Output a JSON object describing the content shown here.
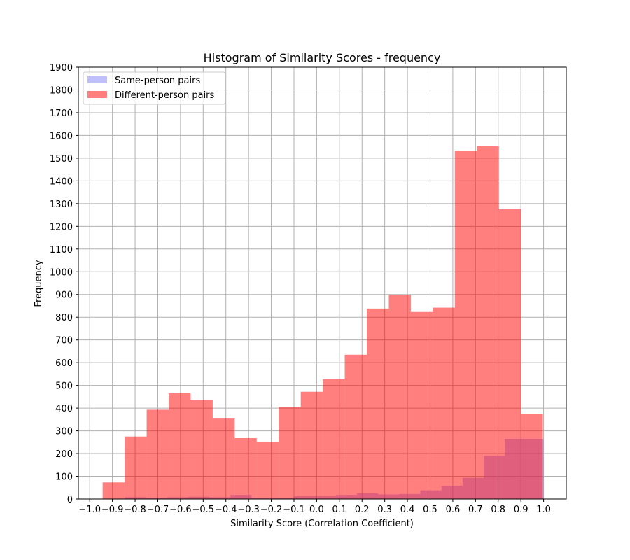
{
  "chart_data": {
    "type": "bar",
    "title": "Histogram of Similarity Scores - frequency",
    "xlabel": "Similarity Score (Correlation Coefficient)",
    "ylabel": "Frequency",
    "xlim": [
      -1.05,
      1.1
    ],
    "ylim": [
      0,
      1900
    ],
    "xticks": [
      -1.0,
      -0.9,
      -0.8,
      -0.7,
      -0.6,
      -0.5,
      -0.4,
      -0.3,
      -0.2,
      -0.1,
      0.0,
      0.1,
      0.2,
      0.3,
      0.4,
      0.5,
      0.6,
      0.7,
      0.8,
      0.9,
      1.0
    ],
    "xtick_labels": [
      "−1.0",
      "−0.9",
      "−0.8",
      "−0.7",
      "−0.6",
      "−0.5",
      "−0.4",
      "−0.3",
      "−0.2",
      "−0.1",
      "0.0",
      "0.1",
      "0.2",
      "0.3",
      "0.4",
      "0.5",
      "0.6",
      "0.7",
      "0.8",
      "0.9",
      "1.0"
    ],
    "yticks": [
      0,
      100,
      200,
      300,
      400,
      500,
      600,
      700,
      800,
      900,
      1000,
      1100,
      1200,
      1300,
      1400,
      1500,
      1600,
      1700,
      1800,
      1900
    ],
    "grid": true,
    "legend_position": "top-left",
    "series": [
      {
        "name": "Same-person pairs",
        "color": "#7f7ff5",
        "opacity": 0.5,
        "bins": [
          {
            "x0": -0.845,
            "x1": -0.752,
            "value": 8
          },
          {
            "x0": -0.752,
            "x1": -0.659,
            "value": 5
          },
          {
            "x0": -0.659,
            "x1": -0.566,
            "value": 8
          },
          {
            "x0": -0.566,
            "x1": -0.473,
            "value": 10
          },
          {
            "x0": -0.473,
            "x1": -0.38,
            "value": 8
          },
          {
            "x0": -0.38,
            "x1": -0.287,
            "value": 18
          },
          {
            "x0": -0.287,
            "x1": -0.194,
            "value": 5
          },
          {
            "x0": -0.194,
            "x1": -0.101,
            "value": 3
          },
          {
            "x0": -0.101,
            "x1": -0.008,
            "value": 12
          },
          {
            "x0": -0.008,
            "x1": 0.085,
            "value": 12
          },
          {
            "x0": 0.085,
            "x1": 0.178,
            "value": 18
          },
          {
            "x0": 0.178,
            "x1": 0.271,
            "value": 25
          },
          {
            "x0": 0.271,
            "x1": 0.364,
            "value": 20
          },
          {
            "x0": 0.364,
            "x1": 0.457,
            "value": 22
          },
          {
            "x0": 0.457,
            "x1": 0.55,
            "value": 38
          },
          {
            "x0": 0.55,
            "x1": 0.643,
            "value": 58
          },
          {
            "x0": 0.643,
            "x1": 0.736,
            "value": 93
          },
          {
            "x0": 0.736,
            "x1": 0.829,
            "value": 190
          },
          {
            "x0": 0.829,
            "x1": 0.922,
            "value": 265
          },
          {
            "x0": 0.922,
            "x1": 1.0,
            "value": 265
          }
        ]
      },
      {
        "name": "Different-person pairs",
        "color": "#ff0000",
        "opacity": 0.5,
        "bins": [
          {
            "x0": -0.943,
            "x1": -0.846,
            "value": 73
          },
          {
            "x0": -0.846,
            "x1": -0.749,
            "value": 275
          },
          {
            "x0": -0.749,
            "x1": -0.652,
            "value": 393
          },
          {
            "x0": -0.652,
            "x1": -0.555,
            "value": 465
          },
          {
            "x0": -0.555,
            "x1": -0.458,
            "value": 435
          },
          {
            "x0": -0.458,
            "x1": -0.361,
            "value": 357
          },
          {
            "x0": -0.361,
            "x1": -0.264,
            "value": 268
          },
          {
            "x0": -0.264,
            "x1": -0.167,
            "value": 250
          },
          {
            "x0": -0.167,
            "x1": -0.07,
            "value": 405
          },
          {
            "x0": -0.07,
            "x1": 0.027,
            "value": 472
          },
          {
            "x0": 0.027,
            "x1": 0.124,
            "value": 527
          },
          {
            "x0": 0.124,
            "x1": 0.221,
            "value": 635
          },
          {
            "x0": 0.221,
            "x1": 0.318,
            "value": 838
          },
          {
            "x0": 0.318,
            "x1": 0.415,
            "value": 898
          },
          {
            "x0": 0.415,
            "x1": 0.512,
            "value": 823
          },
          {
            "x0": 0.512,
            "x1": 0.609,
            "value": 842
          },
          {
            "x0": 0.609,
            "x1": 0.706,
            "value": 1533
          },
          {
            "x0": 0.706,
            "x1": 0.803,
            "value": 1552
          },
          {
            "x0": 0.803,
            "x1": 0.9,
            "value": 1275
          },
          {
            "x0": 0.9,
            "x1": 0.997,
            "value": 375
          }
        ]
      }
    ]
  }
}
